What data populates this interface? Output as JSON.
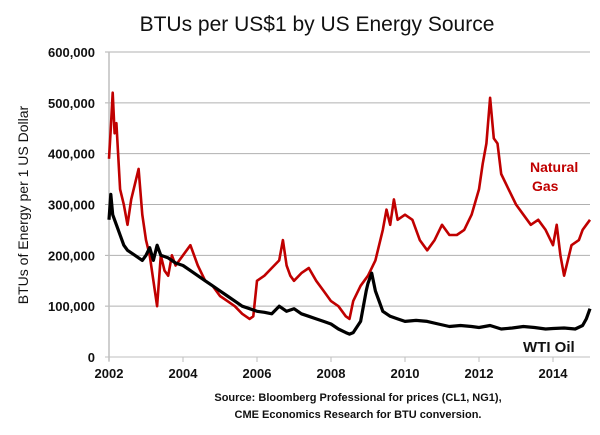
{
  "chart_data": {
    "type": "line",
    "title": "BTUs per US$1 by US Energy Source",
    "xlabel": "",
    "ylabel": "BTUs of Energy per 1 US Dollar",
    "xlim": [
      2002,
      2015.1
    ],
    "ylim": [
      0,
      600000
    ],
    "x_ticks": [
      "2002",
      "2004",
      "2006",
      "2008",
      "2010",
      "2012",
      "2014"
    ],
    "y_ticks": [
      "0",
      "100,000",
      "200,000",
      "300,000",
      "400,000",
      "500,000",
      "600,000"
    ],
    "grid": true,
    "source_line1": "Source: Bloomberg Professional  for prices (CL1, NG1),",
    "source_line2": "CME Economics Research for BTU conversion.",
    "series": [
      {
        "name": "Natural Gas",
        "label": "Natural",
        "label2": "Gas",
        "color": "#c00000",
        "x": [
          2002.0,
          2002.05,
          2002.1,
          2002.15,
          2002.2,
          2002.3,
          2002.4,
          2002.5,
          2002.6,
          2002.7,
          2002.8,
          2002.9,
          2003.0,
          2003.1,
          2003.2,
          2003.3,
          2003.4,
          2003.5,
          2003.6,
          2003.7,
          2003.8,
          2003.9,
          2004.0,
          2004.2,
          2004.4,
          2004.6,
          2004.8,
          2005.0,
          2005.2,
          2005.4,
          2005.6,
          2005.8,
          2005.9,
          2006.0,
          2006.2,
          2006.4,
          2006.6,
          2006.7,
          2006.8,
          2006.9,
          2007.0,
          2007.2,
          2007.4,
          2007.6,
          2007.8,
          2008.0,
          2008.2,
          2008.4,
          2008.5,
          2008.6,
          2008.8,
          2009.0,
          2009.2,
          2009.4,
          2009.5,
          2009.6,
          2009.7,
          2009.8,
          2010.0,
          2010.2,
          2010.4,
          2010.6,
          2010.8,
          2011.0,
          2011.2,
          2011.4,
          2011.6,
          2011.8,
          2012.0,
          2012.1,
          2012.2,
          2012.3,
          2012.4,
          2012.5,
          2012.6,
          2012.8,
          2013.0,
          2013.2,
          2013.4,
          2013.6,
          2013.8,
          2014.0,
          2014.1,
          2014.2,
          2014.3,
          2014.5,
          2014.7,
          2014.8,
          2014.9,
          2015.0
        ],
        "y": [
          390000,
          450000,
          520000,
          440000,
          460000,
          330000,
          300000,
          260000,
          310000,
          340000,
          370000,
          280000,
          230000,
          200000,
          150000,
          100000,
          200000,
          170000,
          160000,
          200000,
          180000,
          190000,
          200000,
          220000,
          180000,
          150000,
          140000,
          120000,
          110000,
          100000,
          85000,
          75000,
          80000,
          150000,
          160000,
          175000,
          190000,
          230000,
          180000,
          160000,
          150000,
          165000,
          175000,
          150000,
          130000,
          110000,
          100000,
          80000,
          75000,
          110000,
          140000,
          160000,
          190000,
          250000,
          290000,
          260000,
          310000,
          270000,
          280000,
          270000,
          230000,
          210000,
          230000,
          260000,
          240000,
          240000,
          250000,
          280000,
          330000,
          380000,
          420000,
          510000,
          430000,
          420000,
          360000,
          330000,
          300000,
          280000,
          260000,
          270000,
          250000,
          220000,
          260000,
          200000,
          160000,
          220000,
          230000,
          250000,
          260000,
          270000
        ]
      },
      {
        "name": "WTI Oil",
        "label": "WTI Oil",
        "color": "#000000",
        "x": [
          2002.0,
          2002.05,
          2002.1,
          2002.2,
          2002.3,
          2002.4,
          2002.5,
          2002.7,
          2002.9,
          2003.0,
          2003.1,
          2003.2,
          2003.3,
          2003.4,
          2003.6,
          2003.8,
          2004.0,
          2004.2,
          2004.4,
          2004.6,
          2004.8,
          2005.0,
          2005.2,
          2005.4,
          2005.6,
          2005.8,
          2006.0,
          2006.2,
          2006.4,
          2006.6,
          2006.8,
          2007.0,
          2007.2,
          2007.4,
          2007.6,
          2007.8,
          2008.0,
          2008.2,
          2008.4,
          2008.5,
          2008.6,
          2008.8,
          2008.95,
          2009.0,
          2009.1,
          2009.2,
          2009.3,
          2009.4,
          2009.6,
          2009.8,
          2010.0,
          2010.3,
          2010.6,
          2010.9,
          2011.2,
          2011.5,
          2011.8,
          2012.0,
          2012.3,
          2012.6,
          2012.9,
          2013.2,
          2013.5,
          2013.8,
          2014.0,
          2014.3,
          2014.6,
          2014.8,
          2014.9,
          2015.0
        ],
        "y": [
          270000,
          320000,
          280000,
          260000,
          240000,
          220000,
          210000,
          200000,
          190000,
          200000,
          215000,
          190000,
          220000,
          200000,
          195000,
          185000,
          180000,
          170000,
          160000,
          150000,
          140000,
          130000,
          120000,
          110000,
          100000,
          95000,
          90000,
          88000,
          85000,
          100000,
          90000,
          95000,
          85000,
          80000,
          75000,
          70000,
          65000,
          55000,
          48000,
          45000,
          48000,
          70000,
          130000,
          145000,
          165000,
          130000,
          110000,
          90000,
          80000,
          75000,
          70000,
          72000,
          70000,
          65000,
          60000,
          62000,
          60000,
          58000,
          62000,
          55000,
          57000,
          60000,
          58000,
          55000,
          56000,
          57000,
          55000,
          62000,
          75000,
          95000
        ]
      }
    ]
  }
}
